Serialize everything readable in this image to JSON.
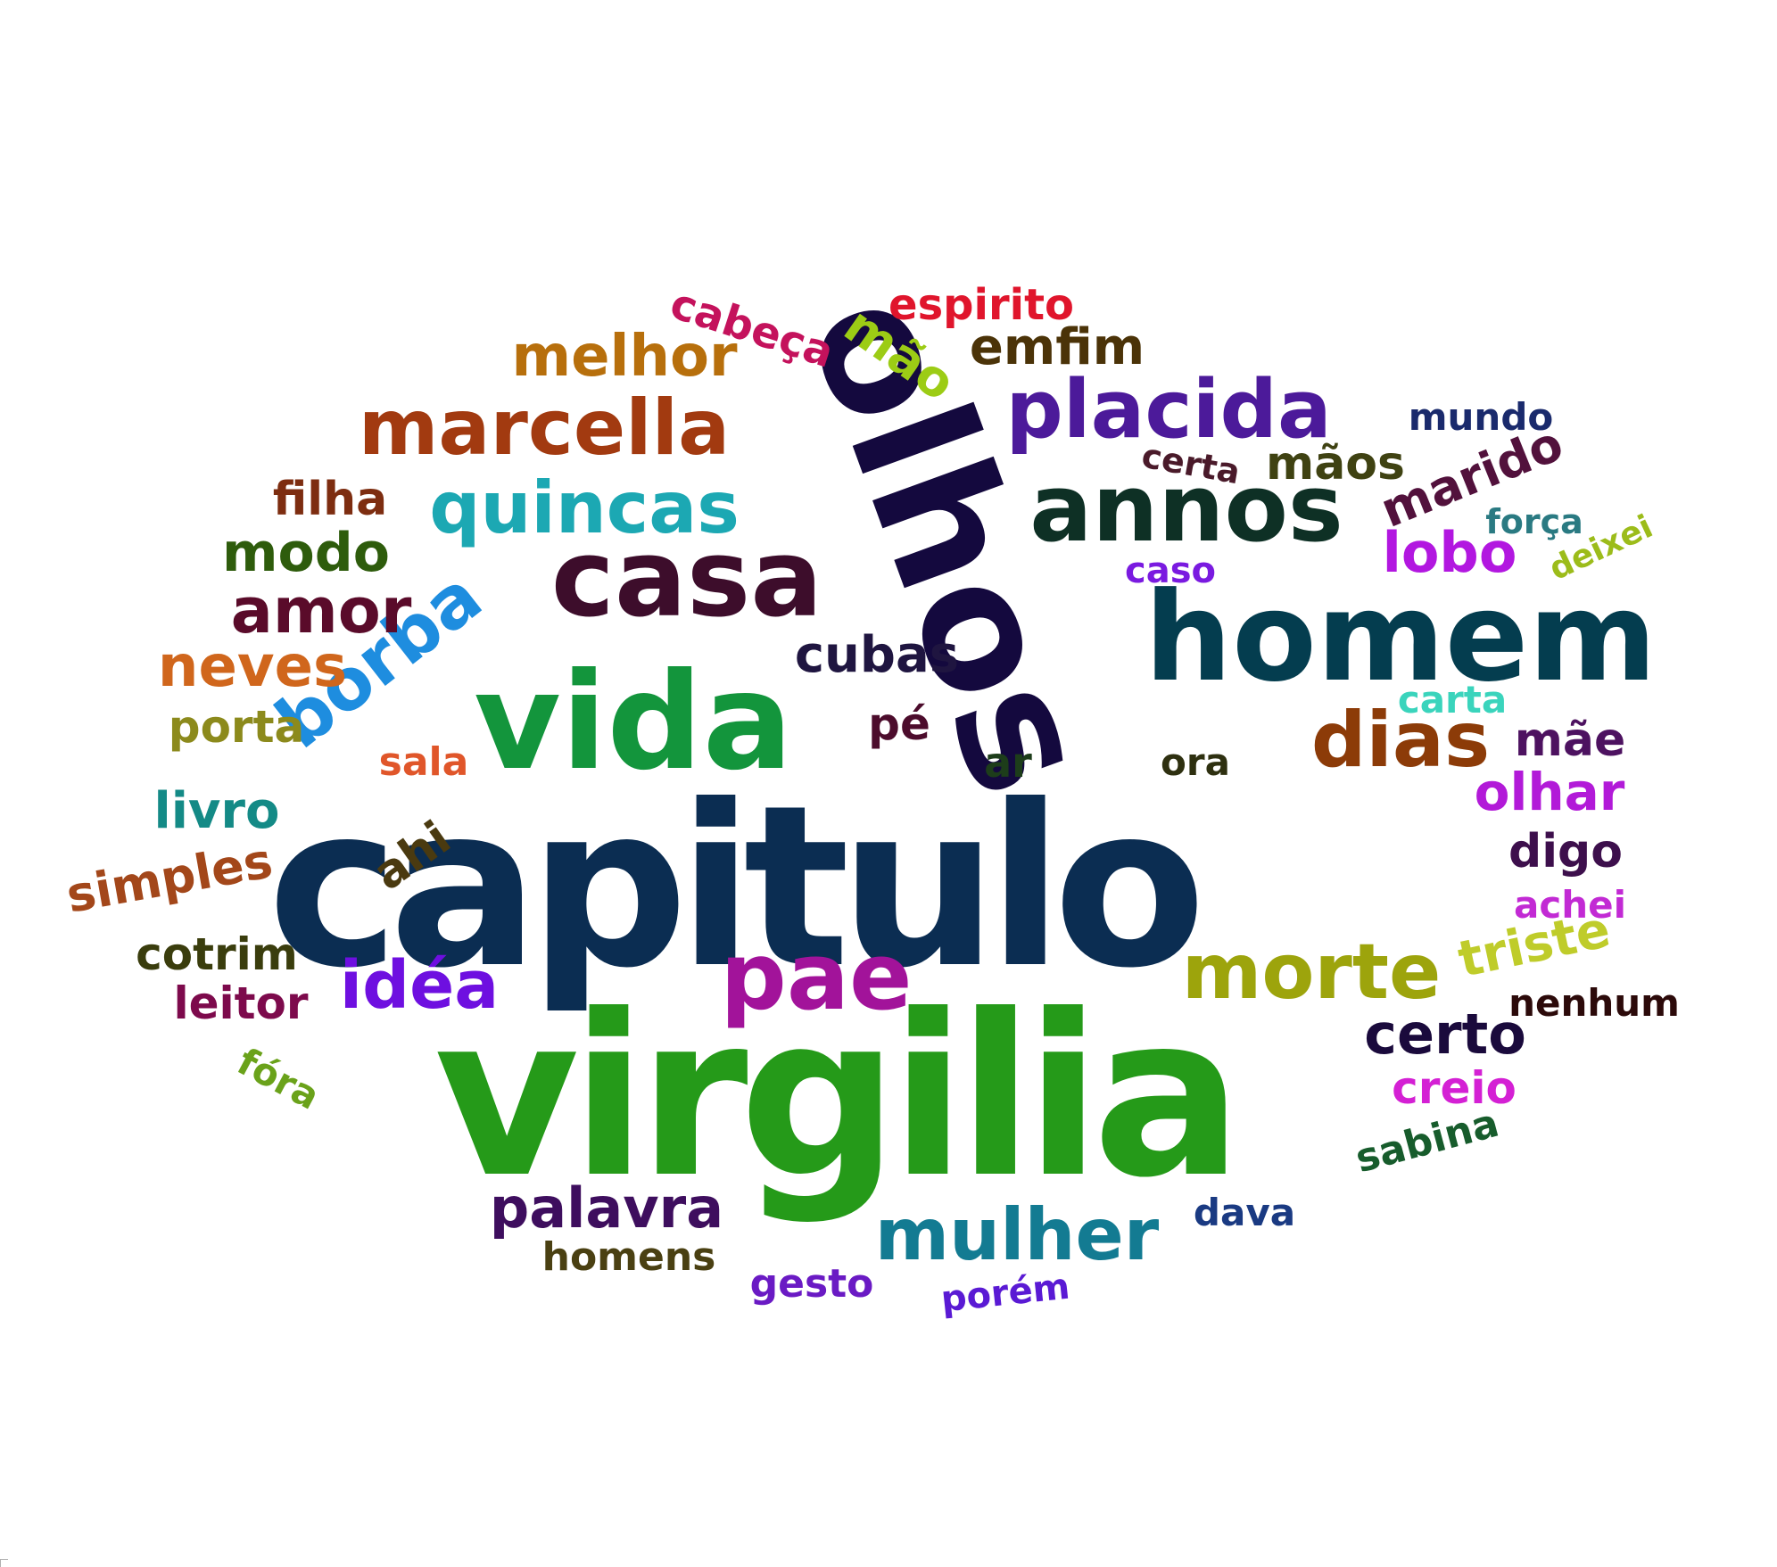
{
  "word_cloud": {
    "words": [
      {
        "id": "capitulo",
        "text": "capitulo",
        "color": "#0b2d52"
      },
      {
        "id": "virgilia",
        "text": "virgilia",
        "color": "#259a19"
      },
      {
        "id": "olhos",
        "text": "olhos",
        "color": "#14093e"
      },
      {
        "id": "homem",
        "text": "homem",
        "color": "#043d4f"
      },
      {
        "id": "vida",
        "text": "vida",
        "color": "#13953c"
      },
      {
        "id": "casa",
        "text": "casa",
        "color": "#3d0d2b"
      },
      {
        "id": "annos",
        "text": "annos",
        "color": "#0e3025"
      },
      {
        "id": "placida",
        "text": "placida",
        "color": "#4c1a9a"
      },
      {
        "id": "marcella",
        "text": "marcella",
        "color": "#a23a10"
      },
      {
        "id": "quincas",
        "text": "quincas",
        "color": "#1ca8b3"
      },
      {
        "id": "borba",
        "text": "borba",
        "color": "#1e8ddf"
      },
      {
        "id": "pae",
        "text": "pae",
        "color": "#a2139a"
      },
      {
        "id": "morte",
        "text": "morte",
        "color": "#9da40c"
      },
      {
        "id": "dias",
        "text": "dias",
        "color": "#8c3b08"
      },
      {
        "id": "mulher",
        "text": "mulher",
        "color": "#137b92"
      },
      {
        "id": "idea",
        "text": "idéa",
        "color": "#6e0fe0"
      },
      {
        "id": "amor",
        "text": "amor",
        "color": "#5a0b2a"
      },
      {
        "id": "melhor",
        "text": "melhor",
        "color": "#b76f0c"
      },
      {
        "id": "neves",
        "text": "neves",
        "color": "#d0661c"
      },
      {
        "id": "emfim",
        "text": "emfim",
        "color": "#4b3308"
      },
      {
        "id": "mao",
        "text": "mão",
        "color": "#9ccc15"
      },
      {
        "id": "lobo",
        "text": "lobo",
        "color": "#b217e0"
      },
      {
        "id": "palavra",
        "text": "palavra",
        "color": "#3e0e5e"
      },
      {
        "id": "certo",
        "text": "certo",
        "color": "#1a0a3c"
      },
      {
        "id": "modo",
        "text": "modo",
        "color": "#2e5c0c"
      },
      {
        "id": "olhar",
        "text": "olhar",
        "color": "#b21ad8"
      },
      {
        "id": "cubas",
        "text": "cubas",
        "color": "#1f1540"
      },
      {
        "id": "triste",
        "text": "triste",
        "color": "#bfcc2a"
      },
      {
        "id": "marido",
        "text": "marido",
        "color": "#52113c"
      },
      {
        "id": "maos",
        "text": "mãos",
        "color": "#3f4212"
      },
      {
        "id": "simples",
        "text": "simples",
        "color": "#a3471a"
      },
      {
        "id": "livro",
        "text": "livro",
        "color": "#148a86"
      },
      {
        "id": "filha",
        "text": "filha",
        "color": "#7d2d10"
      },
      {
        "id": "cotrim",
        "text": "cotrim",
        "color": "#3a3d0d"
      },
      {
        "id": "leitor",
        "text": "leitor",
        "color": "#7d0a4c"
      },
      {
        "id": "porta",
        "text": "porta",
        "color": "#8c8a1c"
      },
      {
        "id": "digo",
        "text": "digo",
        "color": "#3d0f4c"
      },
      {
        "id": "mae",
        "text": "mãe",
        "color": "#4d1260"
      },
      {
        "id": "creio",
        "text": "creio",
        "color": "#d420d4"
      },
      {
        "id": "cabeca",
        "text": "cabeça",
        "color": "#c4125c"
      },
      {
        "id": "espirito",
        "text": "espirito",
        "color": "#e0152c"
      },
      {
        "id": "homens",
        "text": "homens",
        "color": "#4a4012"
      },
      {
        "id": "sabina",
        "text": "sabina",
        "color": "#175c2c"
      },
      {
        "id": "ahi",
        "text": "ahi",
        "color": "#4a3a10"
      },
      {
        "id": "pe",
        "text": "pé",
        "color": "#4c0c2c"
      },
      {
        "id": "ar",
        "text": "ar",
        "color": "#1d3d1a"
      },
      {
        "id": "ora",
        "text": "ora",
        "color": "#2e3010"
      },
      {
        "id": "sala",
        "text": "sala",
        "color": "#e0562a"
      },
      {
        "id": "nenhum",
        "text": "nenhum",
        "color": "#2c0a0a"
      },
      {
        "id": "mundo",
        "text": "mundo",
        "color": "#1a2a6c"
      },
      {
        "id": "certa",
        "text": "certa",
        "color": "#4a1a2a"
      },
      {
        "id": "forca",
        "text": "força",
        "color": "#2a7a82"
      },
      {
        "id": "deixei",
        "text": "deixei",
        "color": "#9cbc1a"
      },
      {
        "id": "caso",
        "text": "caso",
        "color": "#7a1ae0"
      },
      {
        "id": "carta",
        "text": "carta",
        "color": "#3ad4bc"
      },
      {
        "id": "achei",
        "text": "achei",
        "color": "#c22ad4"
      },
      {
        "id": "fora",
        "text": "fóra",
        "color": "#6aa21a"
      },
      {
        "id": "dava",
        "text": "dava",
        "color": "#1a3a82"
      },
      {
        "id": "gesto",
        "text": "gesto",
        "color": "#6a1ac4"
      },
      {
        "id": "porem",
        "text": "porém",
        "color": "#5a1ad4"
      }
    ]
  }
}
